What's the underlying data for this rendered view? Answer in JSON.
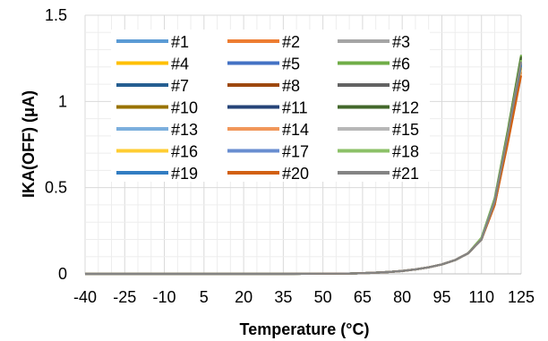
{
  "chart_data": {
    "type": "line",
    "title": "",
    "xlabel": "Temperature (°C)",
    "ylabel": "IKA(OFF) (μA)",
    "xlim": [
      -40,
      125
    ],
    "ylim": [
      0,
      1.5
    ],
    "x_ticks": [
      "-40",
      "-25",
      "-10",
      "5",
      "20",
      "35",
      "50",
      "65",
      "80",
      "95",
      "110",
      "125"
    ],
    "y_ticks": [
      "0",
      "0.5",
      "1",
      "1.5"
    ],
    "grid": "on",
    "legend_position": "top-left inside plot",
    "x": [
      -40,
      -25,
      -10,
      5,
      20,
      35,
      50,
      60,
      65,
      70,
      75,
      80,
      85,
      90,
      95,
      100,
      105,
      110,
      115,
      120,
      125
    ],
    "series": [
      {
        "name": "#1",
        "color": "#5B9BD5",
        "values": [
          0,
          0,
          0,
          0,
          0,
          0,
          0.001,
          0.002,
          0.004,
          0.007,
          0.011,
          0.017,
          0.026,
          0.038,
          0.055,
          0.08,
          0.12,
          0.2,
          0.42,
          0.8,
          1.22
        ]
      },
      {
        "name": "#2",
        "color": "#ED7D31",
        "values": [
          0,
          0,
          0,
          0,
          0,
          0,
          0.001,
          0.002,
          0.004,
          0.007,
          0.011,
          0.017,
          0.026,
          0.038,
          0.055,
          0.08,
          0.12,
          0.2,
          0.41,
          0.78,
          1.19
        ]
      },
      {
        "name": "#3",
        "color": "#A5A5A5",
        "values": [
          0,
          0,
          0,
          0,
          0,
          0,
          0.001,
          0.002,
          0.004,
          0.007,
          0.011,
          0.017,
          0.026,
          0.038,
          0.055,
          0.08,
          0.12,
          0.2,
          0.42,
          0.81,
          1.24
        ]
      },
      {
        "name": "#4",
        "color": "#FFC000",
        "values": [
          0,
          0,
          0,
          0,
          0,
          0,
          0.001,
          0.002,
          0.004,
          0.007,
          0.011,
          0.017,
          0.026,
          0.038,
          0.055,
          0.08,
          0.12,
          0.2,
          0.41,
          0.79,
          1.2
        ]
      },
      {
        "name": "#5",
        "color": "#4472C4",
        "values": [
          0,
          0,
          0,
          0,
          0,
          0,
          0.001,
          0.002,
          0.004,
          0.007,
          0.011,
          0.017,
          0.026,
          0.038,
          0.055,
          0.08,
          0.12,
          0.2,
          0.42,
          0.8,
          1.21
        ]
      },
      {
        "name": "#6",
        "color": "#70AD47",
        "values": [
          0,
          0,
          0,
          0,
          0,
          0,
          0.001,
          0.002,
          0.004,
          0.007,
          0.011,
          0.017,
          0.026,
          0.038,
          0.055,
          0.08,
          0.12,
          0.21,
          0.44,
          0.84,
          1.27
        ]
      },
      {
        "name": "#7",
        "color": "#255E91",
        "values": [
          0,
          0,
          0,
          0,
          0,
          0,
          0.001,
          0.002,
          0.004,
          0.007,
          0.011,
          0.017,
          0.026,
          0.038,
          0.055,
          0.08,
          0.12,
          0.2,
          0.42,
          0.8,
          1.22
        ]
      },
      {
        "name": "#8",
        "color": "#9E480E",
        "values": [
          0,
          0,
          0,
          0,
          0,
          0,
          0.001,
          0.002,
          0.004,
          0.007,
          0.011,
          0.017,
          0.026,
          0.038,
          0.055,
          0.08,
          0.12,
          0.2,
          0.4,
          0.77,
          1.17
        ]
      },
      {
        "name": "#9",
        "color": "#636363",
        "values": [
          0,
          0,
          0,
          0,
          0,
          0,
          0.001,
          0.002,
          0.004,
          0.007,
          0.011,
          0.017,
          0.026,
          0.038,
          0.055,
          0.08,
          0.12,
          0.2,
          0.43,
          0.82,
          1.25
        ]
      },
      {
        "name": "#10",
        "color": "#997300",
        "values": [
          0,
          0,
          0,
          0,
          0,
          0,
          0.001,
          0.002,
          0.004,
          0.007,
          0.011,
          0.017,
          0.026,
          0.038,
          0.055,
          0.08,
          0.12,
          0.2,
          0.41,
          0.79,
          1.2
        ]
      },
      {
        "name": "#11",
        "color": "#264478",
        "values": [
          0,
          0,
          0,
          0,
          0,
          0,
          0.001,
          0.002,
          0.004,
          0.007,
          0.011,
          0.017,
          0.026,
          0.038,
          0.055,
          0.08,
          0.12,
          0.2,
          0.42,
          0.8,
          1.22
        ]
      },
      {
        "name": "#12",
        "color": "#43682B",
        "values": [
          0,
          0,
          0,
          0,
          0,
          0,
          0.001,
          0.002,
          0.004,
          0.007,
          0.011,
          0.017,
          0.026,
          0.038,
          0.055,
          0.08,
          0.12,
          0.21,
          0.43,
          0.83,
          1.26
        ]
      },
      {
        "name": "#13",
        "color": "#7CAFDD",
        "values": [
          0,
          0,
          0,
          0,
          0,
          0,
          0.001,
          0.002,
          0.004,
          0.007,
          0.011,
          0.017,
          0.026,
          0.038,
          0.055,
          0.08,
          0.12,
          0.2,
          0.42,
          0.8,
          1.21
        ]
      },
      {
        "name": "#14",
        "color": "#F1975A",
        "values": [
          0,
          0,
          0,
          0,
          0,
          0,
          0.001,
          0.002,
          0.004,
          0.007,
          0.011,
          0.017,
          0.026,
          0.038,
          0.055,
          0.08,
          0.12,
          0.2,
          0.4,
          0.77,
          1.17
        ]
      },
      {
        "name": "#15",
        "color": "#B7B7B7",
        "values": [
          0,
          0,
          0,
          0,
          0,
          0,
          0.001,
          0.002,
          0.004,
          0.007,
          0.011,
          0.017,
          0.026,
          0.038,
          0.055,
          0.08,
          0.12,
          0.2,
          0.42,
          0.8,
          1.22
        ]
      },
      {
        "name": "#16",
        "color": "#FFCD33",
        "values": [
          0,
          0,
          0,
          0,
          0,
          0,
          0.001,
          0.002,
          0.004,
          0.007,
          0.011,
          0.017,
          0.026,
          0.038,
          0.055,
          0.08,
          0.12,
          0.2,
          0.41,
          0.79,
          1.2
        ]
      },
      {
        "name": "#17",
        "color": "#698ED0",
        "values": [
          0,
          0,
          0,
          0,
          0,
          0,
          0.001,
          0.002,
          0.004,
          0.007,
          0.011,
          0.017,
          0.026,
          0.038,
          0.055,
          0.08,
          0.12,
          0.2,
          0.42,
          0.8,
          1.22
        ]
      },
      {
        "name": "#18",
        "color": "#8CC168",
        "values": [
          0,
          0,
          0,
          0,
          0,
          0,
          0.001,
          0.002,
          0.004,
          0.007,
          0.011,
          0.017,
          0.026,
          0.038,
          0.055,
          0.08,
          0.12,
          0.21,
          0.43,
          0.82,
          1.24
        ]
      },
      {
        "name": "#19",
        "color": "#327DC2",
        "values": [
          0,
          0,
          0,
          0,
          0,
          0,
          0.001,
          0.002,
          0.004,
          0.007,
          0.011,
          0.017,
          0.026,
          0.038,
          0.055,
          0.08,
          0.12,
          0.2,
          0.42,
          0.8,
          1.21
        ]
      },
      {
        "name": "#20",
        "color": "#D26012",
        "values": [
          0,
          0,
          0,
          0,
          0,
          0,
          0.001,
          0.002,
          0.004,
          0.007,
          0.011,
          0.017,
          0.026,
          0.038,
          0.055,
          0.08,
          0.12,
          0.2,
          0.4,
          0.76,
          1.15
        ]
      },
      {
        "name": "#21",
        "color": "#848484",
        "values": [
          0,
          0,
          0,
          0,
          0,
          0,
          0.001,
          0.002,
          0.004,
          0.007,
          0.011,
          0.017,
          0.026,
          0.038,
          0.055,
          0.08,
          0.12,
          0.2,
          0.42,
          0.81,
          1.23
        ]
      }
    ]
  }
}
